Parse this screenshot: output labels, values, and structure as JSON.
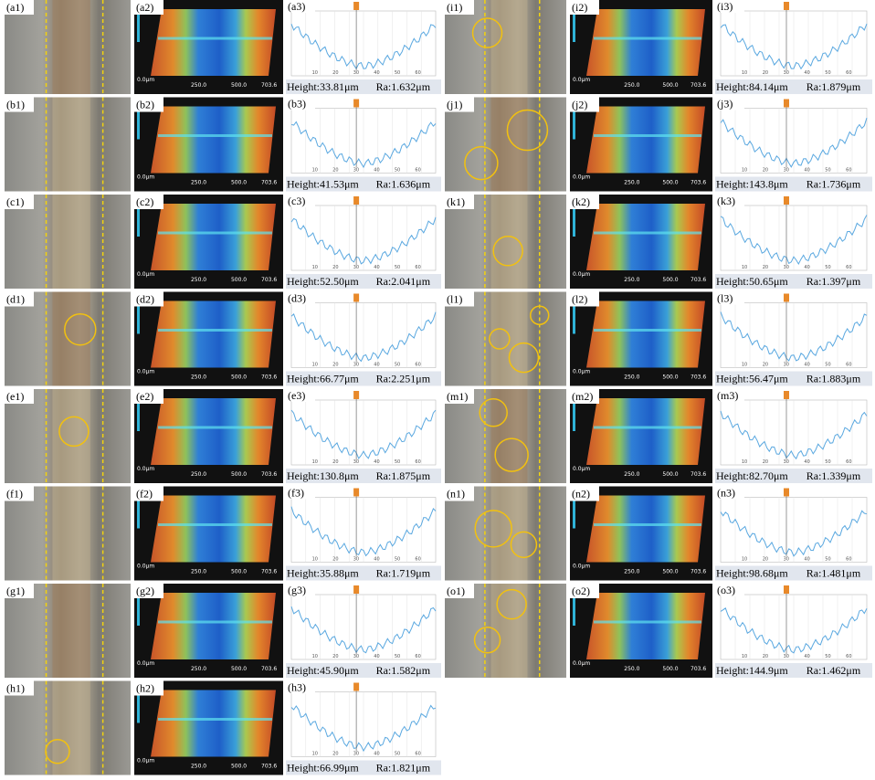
{
  "axis3d_labels": [
    "0.0μm",
    "250.0",
    "500.0",
    "703.6"
  ],
  "profile_ticks": [
    "10",
    "20",
    "30",
    "40",
    "50",
    "60"
  ],
  "rows": [
    {
      "labels": [
        "(a1)",
        "(a2)",
        "(a3)"
      ],
      "height": "Height:33.81μm",
      "ra": "Ra:1.632μm"
    },
    {
      "labels": [
        "(b1)",
        "(b2)",
        "(b3)"
      ],
      "height": "Height:41.53μm",
      "ra": "Ra:1.636μm"
    },
    {
      "labels": [
        "(c1)",
        "(c2)",
        "(c3)"
      ],
      "height": "Height:52.50μm",
      "ra": "Ra:2.041μm"
    },
    {
      "labels": [
        "(d1)",
        "(d2)",
        "(d3)"
      ],
      "height": "Height:66.77μm",
      "ra": "Ra:2.251μm"
    },
    {
      "labels": [
        "(e1)",
        "(e2)",
        "(e3)"
      ],
      "height": "Height:130.8μm",
      "ra": "Ra:1.875μm"
    },
    {
      "labels": [
        "(f1)",
        "(f2)",
        "(f3)"
      ],
      "height": "Height:35.88μm",
      "ra": "Ra:1.719μm"
    },
    {
      "labels": [
        "(g1)",
        "(g2)",
        "(g3)"
      ],
      "height": "Height:45.90μm",
      "ra": "Ra:1.582μm"
    },
    {
      "labels": [
        "(h1)",
        "(h2)",
        "(h3)"
      ],
      "height": "Height:66.99μm",
      "ra": "Ra:1.821μm"
    },
    {
      "labels": [
        "(i1)",
        "(i2)",
        "(i3)"
      ],
      "height": "Height:84.14μm",
      "ra": "Ra:1.879μm"
    },
    {
      "labels": [
        "(j1)",
        "(j2)",
        "(j3)"
      ],
      "height": "Height:143.8μm",
      "ra": "Ra:1.736μm"
    },
    {
      "labels": [
        "(k1)",
        "(k2)",
        "(k3)"
      ],
      "height": "Height:50.65μm",
      "ra": "Ra:1.397μm"
    },
    {
      "labels": [
        "(l1)",
        "(l2)",
        "(l3)"
      ],
      "height": "Height:56.47μm",
      "ra": "Ra:1.883μm"
    },
    {
      "labels": [
        "(m1)",
        "(m2)",
        "(m3)"
      ],
      "height": "Height:82.70μm",
      "ra": "Ra:1.339μm"
    },
    {
      "labels": [
        "(n1)",
        "(n2)",
        "(n3)"
      ],
      "height": "Height:98.68μm",
      "ra": "Ra:1.481μm"
    },
    {
      "labels": [
        "(o1)",
        "(o2)",
        "(o3)"
      ],
      "height": "Height:144.9μm",
      "ra": "Ra:1.462μm"
    }
  ]
}
